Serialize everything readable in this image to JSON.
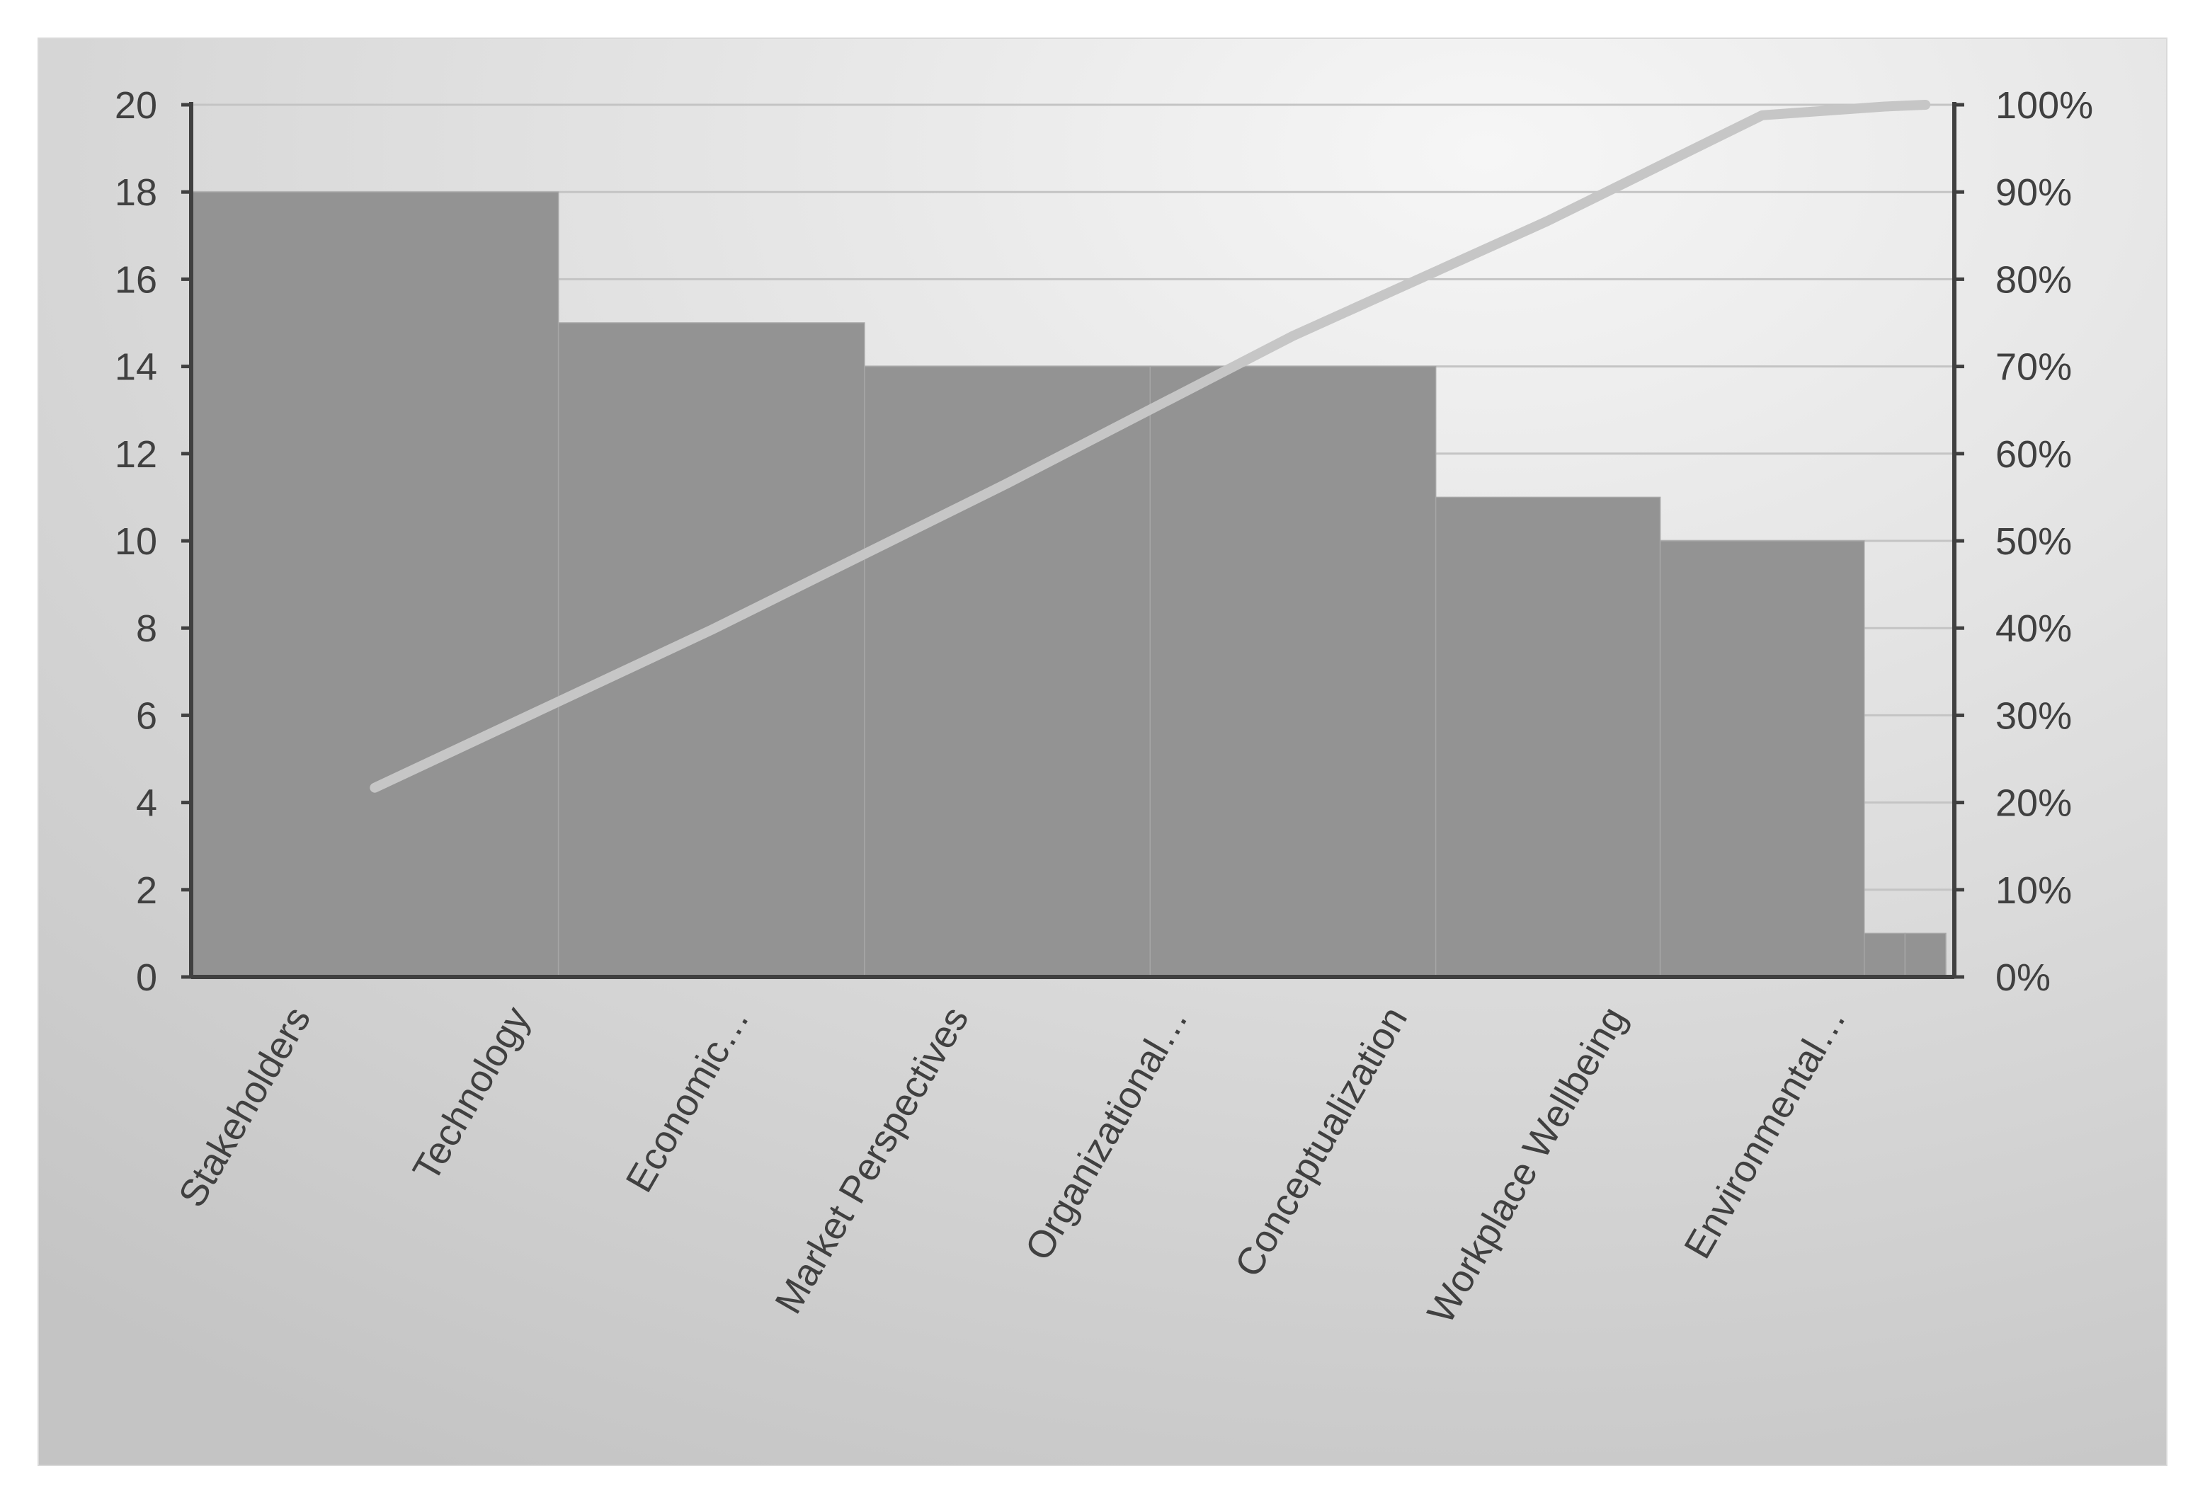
{
  "chart_data": {
    "type": "bar",
    "categories": [
      "Stakeholders",
      "Technology",
      "Economic…",
      "Market Perspectives",
      "Organizational…",
      "Conceptualization",
      "Workplace Wellbeing",
      "Environmental…"
    ],
    "series": [
      {
        "type": "bar",
        "axis": "left",
        "values": [
          18,
          15,
          14,
          14,
          11,
          10,
          1,
          1
        ]
      },
      {
        "type": "line",
        "axis": "right",
        "values": [
          21.7,
          39.8,
          56.6,
          73.5,
          86.7,
          98.8,
          99.8,
          100
        ]
      }
    ],
    "y_left": {
      "ylim": [
        0,
        20
      ],
      "ticks": [
        "0",
        "2",
        "4",
        "6",
        "8",
        "10",
        "12",
        "14",
        "16",
        "18",
        "20"
      ]
    },
    "y_right": {
      "ylim": [
        0,
        100
      ],
      "ticks": [
        "0%",
        "10%",
        "20%",
        "30%",
        "40%",
        "50%",
        "60%",
        "70%",
        "80%",
        "90%",
        "100%"
      ]
    },
    "grid": true,
    "legend": "none",
    "colors": {
      "bar": "#939393",
      "line": "#c6c6c6",
      "axis": "#404040",
      "grid": "#c4c4c4",
      "tick_text": "#404040",
      "background_light": "#f6f6f6",
      "background_dark": "#c4c4c4"
    }
  }
}
